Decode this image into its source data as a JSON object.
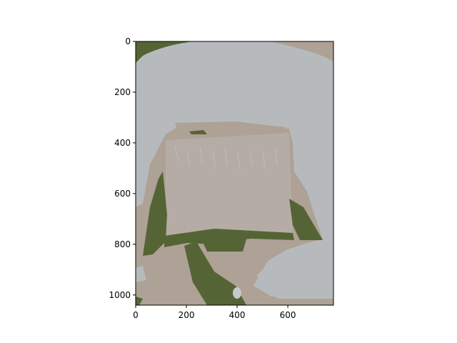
{
  "image": {
    "palette": {
      "background": "#b7babd",
      "tan": "#aea195",
      "olive": "#556434"
    },
    "extent": {
      "x": [
        0,
        780
      ],
      "y": [
        1040,
        0
      ]
    }
  },
  "axes": {
    "x_ticks": [
      {
        "value": 0,
        "label": "0"
      },
      {
        "value": 200,
        "label": "200"
      },
      {
        "value": 400,
        "label": "400"
      },
      {
        "value": 600,
        "label": "600"
      }
    ],
    "y_ticks": [
      {
        "value": 0,
        "label": "0"
      },
      {
        "value": 200,
        "label": "200"
      },
      {
        "value": 400,
        "label": "400"
      },
      {
        "value": 600,
        "label": "600"
      },
      {
        "value": 800,
        "label": "800"
      },
      {
        "value": 1000,
        "label": "1000"
      }
    ]
  }
}
